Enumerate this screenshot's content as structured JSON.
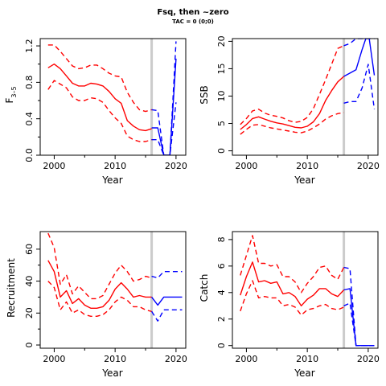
{
  "title": "Fsq, then ~zero",
  "subtitle": "TAC = 0 (0;0)",
  "colors": {
    "historical": "#ff0000",
    "projection": "#0000ff",
    "reference_line": "#cccccc",
    "axis": "#000000"
  },
  "chart_data": [
    {
      "type": "line",
      "ylabel": "F3–5",
      "ylabel_main": "F",
      "ylabel_sub": "3–5",
      "xlabel": "Year",
      "xlim": [
        1997.7,
        2021.6
      ],
      "ylim": [
        0,
        1.28
      ],
      "xticks": [
        2000,
        2010,
        2020
      ],
      "yticks": [
        0.0,
        0.4,
        0.8,
        1.2
      ],
      "yticks_minor": [
        0.2,
        0.6,
        1.0
      ],
      "ytick_labels": [
        "0.0",
        "0.4",
        "0.8",
        "1.2"
      ],
      "reference_x": 2016,
      "series": [
        {
          "role": "median",
          "period": "historical",
          "x": [
            1999,
            2000,
            2001,
            2002,
            2003,
            2004,
            2005,
            2006,
            2007,
            2008,
            2009,
            2010,
            2011,
            2012,
            2013,
            2014,
            2015,
            2016
          ],
          "y": [
            0.96,
            1.0,
            0.95,
            0.87,
            0.79,
            0.76,
            0.76,
            0.79,
            0.78,
            0.76,
            0.7,
            0.62,
            0.57,
            0.38,
            0.32,
            0.28,
            0.27,
            0.29
          ]
        },
        {
          "role": "upper",
          "period": "historical",
          "x": [
            1999,
            2000,
            2001,
            2002,
            2003,
            2004,
            2005,
            2006,
            2007,
            2008,
            2009,
            2010,
            2011,
            2012,
            2013,
            2014,
            2015,
            2016
          ],
          "y": [
            1.21,
            1.21,
            1.14,
            1.06,
            0.98,
            0.95,
            0.96,
            0.99,
            0.99,
            0.95,
            0.9,
            0.87,
            0.86,
            0.69,
            0.58,
            0.5,
            0.48,
            0.5
          ]
        },
        {
          "role": "lower",
          "period": "historical",
          "x": [
            1999,
            2000,
            2001,
            2002,
            2003,
            2004,
            2005,
            2006,
            2007,
            2008,
            2009,
            2010,
            2011,
            2012,
            2013,
            2014,
            2015,
            2016
          ],
          "y": [
            0.72,
            0.82,
            0.78,
            0.74,
            0.64,
            0.6,
            0.6,
            0.63,
            0.62,
            0.58,
            0.49,
            0.41,
            0.35,
            0.21,
            0.17,
            0.15,
            0.15,
            0.17
          ]
        },
        {
          "role": "median",
          "period": "projection",
          "x": [
            2016,
            2017,
            2018,
            2019,
            2020
          ],
          "y": [
            0.3,
            0.3,
            0.0,
            0.0,
            1.06
          ]
        },
        {
          "role": "upper",
          "period": "projection",
          "x": [
            2016,
            2017,
            2018,
            2019,
            2020
          ],
          "y": [
            0.5,
            0.49,
            0.0,
            0.0,
            1.25
          ]
        },
        {
          "role": "lower",
          "period": "projection",
          "x": [
            2016,
            2017,
            2018,
            2019,
            2020
          ],
          "y": [
            0.17,
            0.17,
            0.0,
            0.0,
            0.58
          ]
        }
      ]
    },
    {
      "type": "line",
      "ylabel": "SSB",
      "xlabel": "Year",
      "xlim": [
        1997.7,
        2021.6
      ],
      "ylim": [
        -0.8,
        20.5
      ],
      "xticks": [
        2000,
        2010,
        2020
      ],
      "yticks": [
        0,
        5,
        10,
        15,
        20
      ],
      "ytick_labels": [
        "0",
        "5",
        "10",
        "15",
        "20"
      ],
      "reference_x": 2016,
      "series": [
        {
          "role": "median",
          "period": "historical",
          "x": [
            1999,
            2000,
            2001,
            2002,
            2003,
            2004,
            2005,
            2006,
            2007,
            2008,
            2009,
            2010,
            2011,
            2012,
            2013,
            2014,
            2015,
            2016
          ],
          "y": [
            3.9,
            4.8,
            5.9,
            6.2,
            5.8,
            5.4,
            5.1,
            4.9,
            4.6,
            4.3,
            4.2,
            4.5,
            5.3,
            6.8,
            9.2,
            11.0,
            12.6,
            13.6
          ]
        },
        {
          "role": "upper",
          "period": "historical",
          "x": [
            1999,
            2000,
            2001,
            2002,
            2003,
            2004,
            2005,
            2006,
            2007,
            2008,
            2009,
            2010,
            2011,
            2012,
            2013,
            2014,
            2015,
            2016
          ],
          "y": [
            4.8,
            5.9,
            7.3,
            7.6,
            6.9,
            6.5,
            6.3,
            6.0,
            5.5,
            5.2,
            5.4,
            6.1,
            7.7,
            10.3,
            13.0,
            15.8,
            18.7,
            19.2
          ]
        },
        {
          "role": "lower",
          "period": "historical",
          "x": [
            1999,
            2000,
            2001,
            2002,
            2003,
            2004,
            2005,
            2006,
            2007,
            2008,
            2009,
            2010,
            2011,
            2012,
            2013,
            2014,
            2015,
            2016
          ],
          "y": [
            3.0,
            3.9,
            4.7,
            4.8,
            4.5,
            4.2,
            4.0,
            3.8,
            3.6,
            3.4,
            3.3,
            3.6,
            4.2,
            4.9,
            5.8,
            6.4,
            6.8,
            7.0
          ]
        },
        {
          "role": "median",
          "period": "projection",
          "x": [
            2016,
            2017,
            2018,
            2019,
            2020,
            2021
          ],
          "y": [
            13.6,
            14.2,
            14.8,
            18.5,
            21.8,
            13.8
          ]
        },
        {
          "role": "upper",
          "period": "projection",
          "x": [
            2016,
            2017,
            2018,
            2019,
            2020,
            2021
          ],
          "y": [
            19.2,
            19.6,
            20.5,
            20.5,
            20.5,
            20.5
          ]
        },
        {
          "role": "lower",
          "period": "projection",
          "x": [
            2016,
            2017,
            2018,
            2019,
            2020,
            2021
          ],
          "y": [
            8.7,
            9.0,
            9.0,
            11.5,
            15.8,
            7.6
          ]
        }
      ]
    },
    {
      "type": "line",
      "ylabel": "Recruitment",
      "xlabel": "Year",
      "xlim": [
        1997.7,
        2021.6
      ],
      "ylim": [
        -2.0,
        71.0
      ],
      "xticks": [
        2000,
        2010,
        2020
      ],
      "yticks": [
        0,
        20,
        40,
        60
      ],
      "yticks_minor": [
        10,
        30,
        50
      ],
      "ytick_labels": [
        "0",
        "20",
        "40",
        "60"
      ],
      "reference_x": 2016,
      "series": [
        {
          "role": "median",
          "period": "historical",
          "x": [
            1999,
            2000,
            2001,
            2002,
            2003,
            2004,
            2005,
            2006,
            2007,
            2008,
            2009,
            2010,
            2011,
            2012,
            2013,
            2014,
            2015,
            2016
          ],
          "y": [
            53,
            46,
            30,
            34,
            26,
            29,
            25,
            23,
            23,
            24,
            28,
            35,
            39,
            35,
            30,
            31,
            30,
            30
          ]
        },
        {
          "role": "upper",
          "period": "historical",
          "x": [
            1999,
            2000,
            2001,
            2002,
            2003,
            2004,
            2005,
            2006,
            2007,
            2008,
            2009,
            2010,
            2011,
            2012,
            2013,
            2014,
            2015,
            2016
          ],
          "y": [
            70,
            61,
            38,
            44,
            32,
            37,
            33,
            29,
            29,
            31,
            38,
            45,
            50,
            46,
            40,
            41,
            43,
            42
          ]
        },
        {
          "role": "lower",
          "period": "historical",
          "x": [
            1999,
            2000,
            2001,
            2002,
            2003,
            2004,
            2005,
            2006,
            2007,
            2008,
            2009,
            2010,
            2011,
            2012,
            2013,
            2014,
            2015,
            2016
          ],
          "y": [
            40,
            36,
            22,
            27,
            20,
            22,
            19,
            18,
            18,
            19,
            22,
            27,
            30,
            28,
            24,
            24,
            22,
            21
          ]
        },
        {
          "role": "median",
          "period": "projection",
          "x": [
            2016,
            2017,
            2018,
            2019,
            2020,
            2021
          ],
          "y": [
            30,
            25,
            30,
            30,
            30,
            30
          ]
        },
        {
          "role": "upper",
          "period": "projection",
          "x": [
            2016,
            2017,
            2018,
            2019,
            2020,
            2021
          ],
          "y": [
            43,
            42,
            46,
            46,
            46,
            46
          ]
        },
        {
          "role": "lower",
          "period": "projection",
          "x": [
            2016,
            2017,
            2018,
            2019,
            2020,
            2021
          ],
          "y": [
            21,
            15,
            22,
            22,
            22,
            22
          ]
        }
      ]
    },
    {
      "type": "line",
      "ylabel": "Catch",
      "xlabel": "Year",
      "xlim": [
        1997.7,
        2021.6
      ],
      "ylim": [
        -0.2,
        8.6
      ],
      "xticks": [
        2000,
        2010,
        2020
      ],
      "yticks": [
        0,
        2,
        4,
        6,
        8
      ],
      "ytick_labels": [
        "0",
        "2",
        "4",
        "6",
        "8"
      ],
      "reference_x": 2016,
      "series": [
        {
          "role": "median",
          "period": "historical",
          "x": [
            1999,
            2000,
            2001,
            2002,
            2003,
            2004,
            2005,
            2006,
            2007,
            2008,
            2009,
            2010,
            2011,
            2012,
            2013,
            2014,
            2015,
            2016
          ],
          "y": [
            3.8,
            5.2,
            6.3,
            4.8,
            4.9,
            4.7,
            4.8,
            3.9,
            4.0,
            3.7,
            3.0,
            3.5,
            3.8,
            4.3,
            4.3,
            3.9,
            3.7,
            4.2
          ]
        },
        {
          "role": "upper",
          "period": "historical",
          "x": [
            1999,
            2000,
            2001,
            2002,
            2003,
            2004,
            2005,
            2006,
            2007,
            2008,
            2009,
            2010,
            2011,
            2012,
            2013,
            2014,
            2015,
            2016
          ],
          "y": [
            5.3,
            6.8,
            8.3,
            6.2,
            6.2,
            6.0,
            6.1,
            5.2,
            5.2,
            4.8,
            4.0,
            4.7,
            5.2,
            5.9,
            6.0,
            5.3,
            5.0,
            5.9
          ]
        },
        {
          "role": "lower",
          "period": "historical",
          "x": [
            1999,
            2000,
            2001,
            2002,
            2003,
            2004,
            2005,
            2006,
            2007,
            2008,
            2009,
            2010,
            2011,
            2012,
            2013,
            2014,
            2015,
            2016
          ],
          "y": [
            2.6,
            3.9,
            4.9,
            3.6,
            3.7,
            3.6,
            3.6,
            3.0,
            3.1,
            2.9,
            2.3,
            2.7,
            2.8,
            3.0,
            3.1,
            2.8,
            2.7,
            2.9
          ]
        },
        {
          "role": "median",
          "period": "projection",
          "x": [
            2016,
            2017,
            2018,
            2019,
            2020,
            2021
          ],
          "y": [
            4.2,
            4.3,
            0.0,
            0.0,
            0.0,
            0.0
          ]
        },
        {
          "role": "upper",
          "period": "projection",
          "x": [
            2016,
            2017,
            2018,
            2019,
            2020,
            2021
          ],
          "y": [
            5.9,
            5.8,
            0.0,
            0.0,
            0.0,
            0.0
          ]
        },
        {
          "role": "lower",
          "period": "projection",
          "x": [
            2016,
            2017,
            2018,
            2019,
            2020,
            2021
          ],
          "y": [
            3.0,
            3.2,
            0.0,
            0.0,
            0.0,
            0.0
          ]
        }
      ]
    }
  ]
}
